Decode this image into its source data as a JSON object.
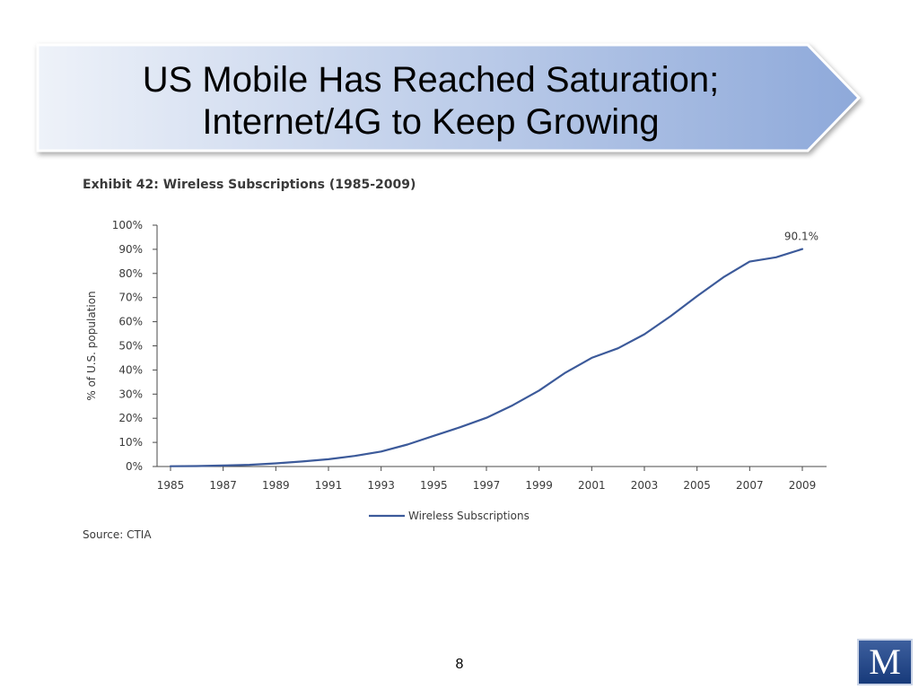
{
  "slide": {
    "title_line1": "US Mobile Has Reached Saturation;",
    "title_line2": "Internet/4G to Keep Growing",
    "page_number": "8",
    "logo_letter": "M"
  },
  "exhibit": {
    "title": "Exhibit 42: Wireless Subscriptions (1985-2009)",
    "source": "Source: CTIA"
  },
  "colors": {
    "series": "#3c5a9a",
    "banner_light": "#eef2f9",
    "banner_dark": "#8ea9da"
  },
  "chart_data": {
    "type": "line",
    "title": "Exhibit 42: Wireless Subscriptions (1985-2009)",
    "xlabel": "",
    "ylabel": "% of U.S. population",
    "xlim": [
      1985,
      2009
    ],
    "ylim": [
      0,
      100
    ],
    "x_ticks": [
      "1985",
      "1987",
      "1989",
      "1991",
      "1993",
      "1995",
      "1997",
      "1999",
      "2001",
      "2003",
      "2005",
      "2007",
      "2009"
    ],
    "y_ticks": [
      "0%",
      "10%",
      "20%",
      "30%",
      "40%",
      "50%",
      "60%",
      "70%",
      "80%",
      "90%",
      "100%"
    ],
    "legend": "bottom",
    "grid": false,
    "series": [
      {
        "name": "Wireless Subscriptions",
        "x": [
          1985,
          1986,
          1987,
          1988,
          1989,
          1990,
          1991,
          1992,
          1993,
          1994,
          1995,
          1996,
          1997,
          1998,
          1999,
          2000,
          2001,
          2002,
          2003,
          2004,
          2005,
          2006,
          2007,
          2008,
          2009
        ],
        "values": [
          0.1,
          0.2,
          0.4,
          0.7,
          1.3,
          2.1,
          3.0,
          4.4,
          6.2,
          9.1,
          12.7,
          16.3,
          20.2,
          25.4,
          31.5,
          38.9,
          45.0,
          49.0,
          54.8,
          62.3,
          70.6,
          78.4,
          84.9,
          86.7,
          90.1
        ]
      }
    ],
    "annotations": [
      {
        "text": "90.1%",
        "x": 2009,
        "y": 90.1
      }
    ]
  }
}
